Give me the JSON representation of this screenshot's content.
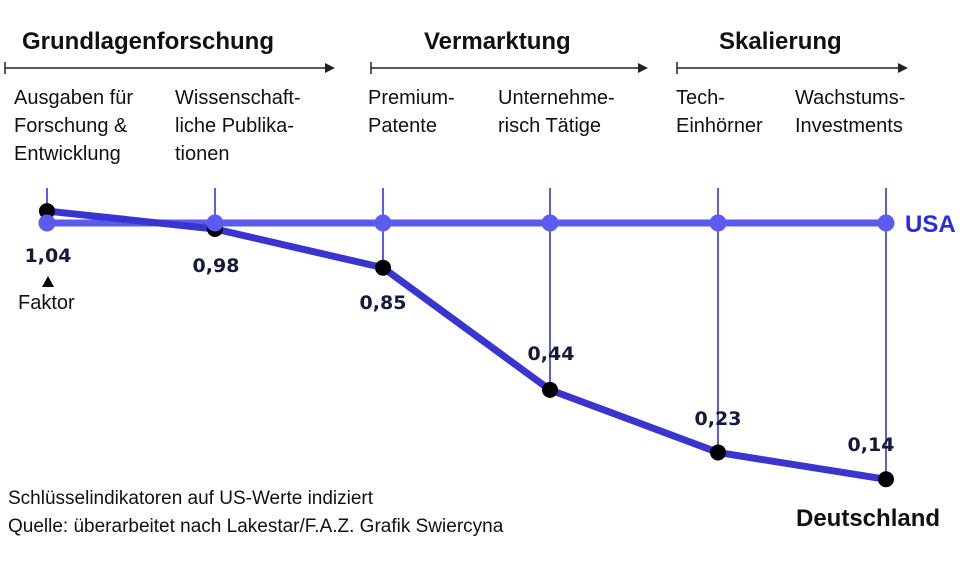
{
  "phases": [
    {
      "label": "Grundlagenforschung"
    },
    {
      "label": "Vermarktung"
    },
    {
      "label": "Skalierung"
    }
  ],
  "chart_data": {
    "type": "line",
    "categories": [
      "Ausgaben für\nForschung &\nEntwicklung",
      "Wissenschaft-\nliche Publika-\ntionen",
      "Premium-\nPatente",
      "Unternehme-\nrisch Tätige",
      "Tech-\nEinhörner",
      "Wachstums-\nInvestments"
    ],
    "series": [
      {
        "name": "USA",
        "values": [
          1,
          1,
          1,
          1,
          1,
          1
        ],
        "color": "#5b5bf0"
      },
      {
        "name": "Deutschland",
        "values": [
          1.04,
          0.98,
          0.85,
          0.44,
          0.23,
          0.14
        ],
        "color": "#3a35d0"
      }
    ],
    "data_labels": [
      "1,04",
      "0,98",
      "0,85",
      "0,44",
      "0,23",
      "0,14"
    ],
    "factor_label": "Faktor",
    "marker_color": "#000000"
  },
  "notes": {
    "line1": "Schlüsselindikatoren auf US-Werte indiziert",
    "line2": "Quelle: überarbeitet nach Lakestar/F.A.Z. Grafik Swiercyna"
  }
}
